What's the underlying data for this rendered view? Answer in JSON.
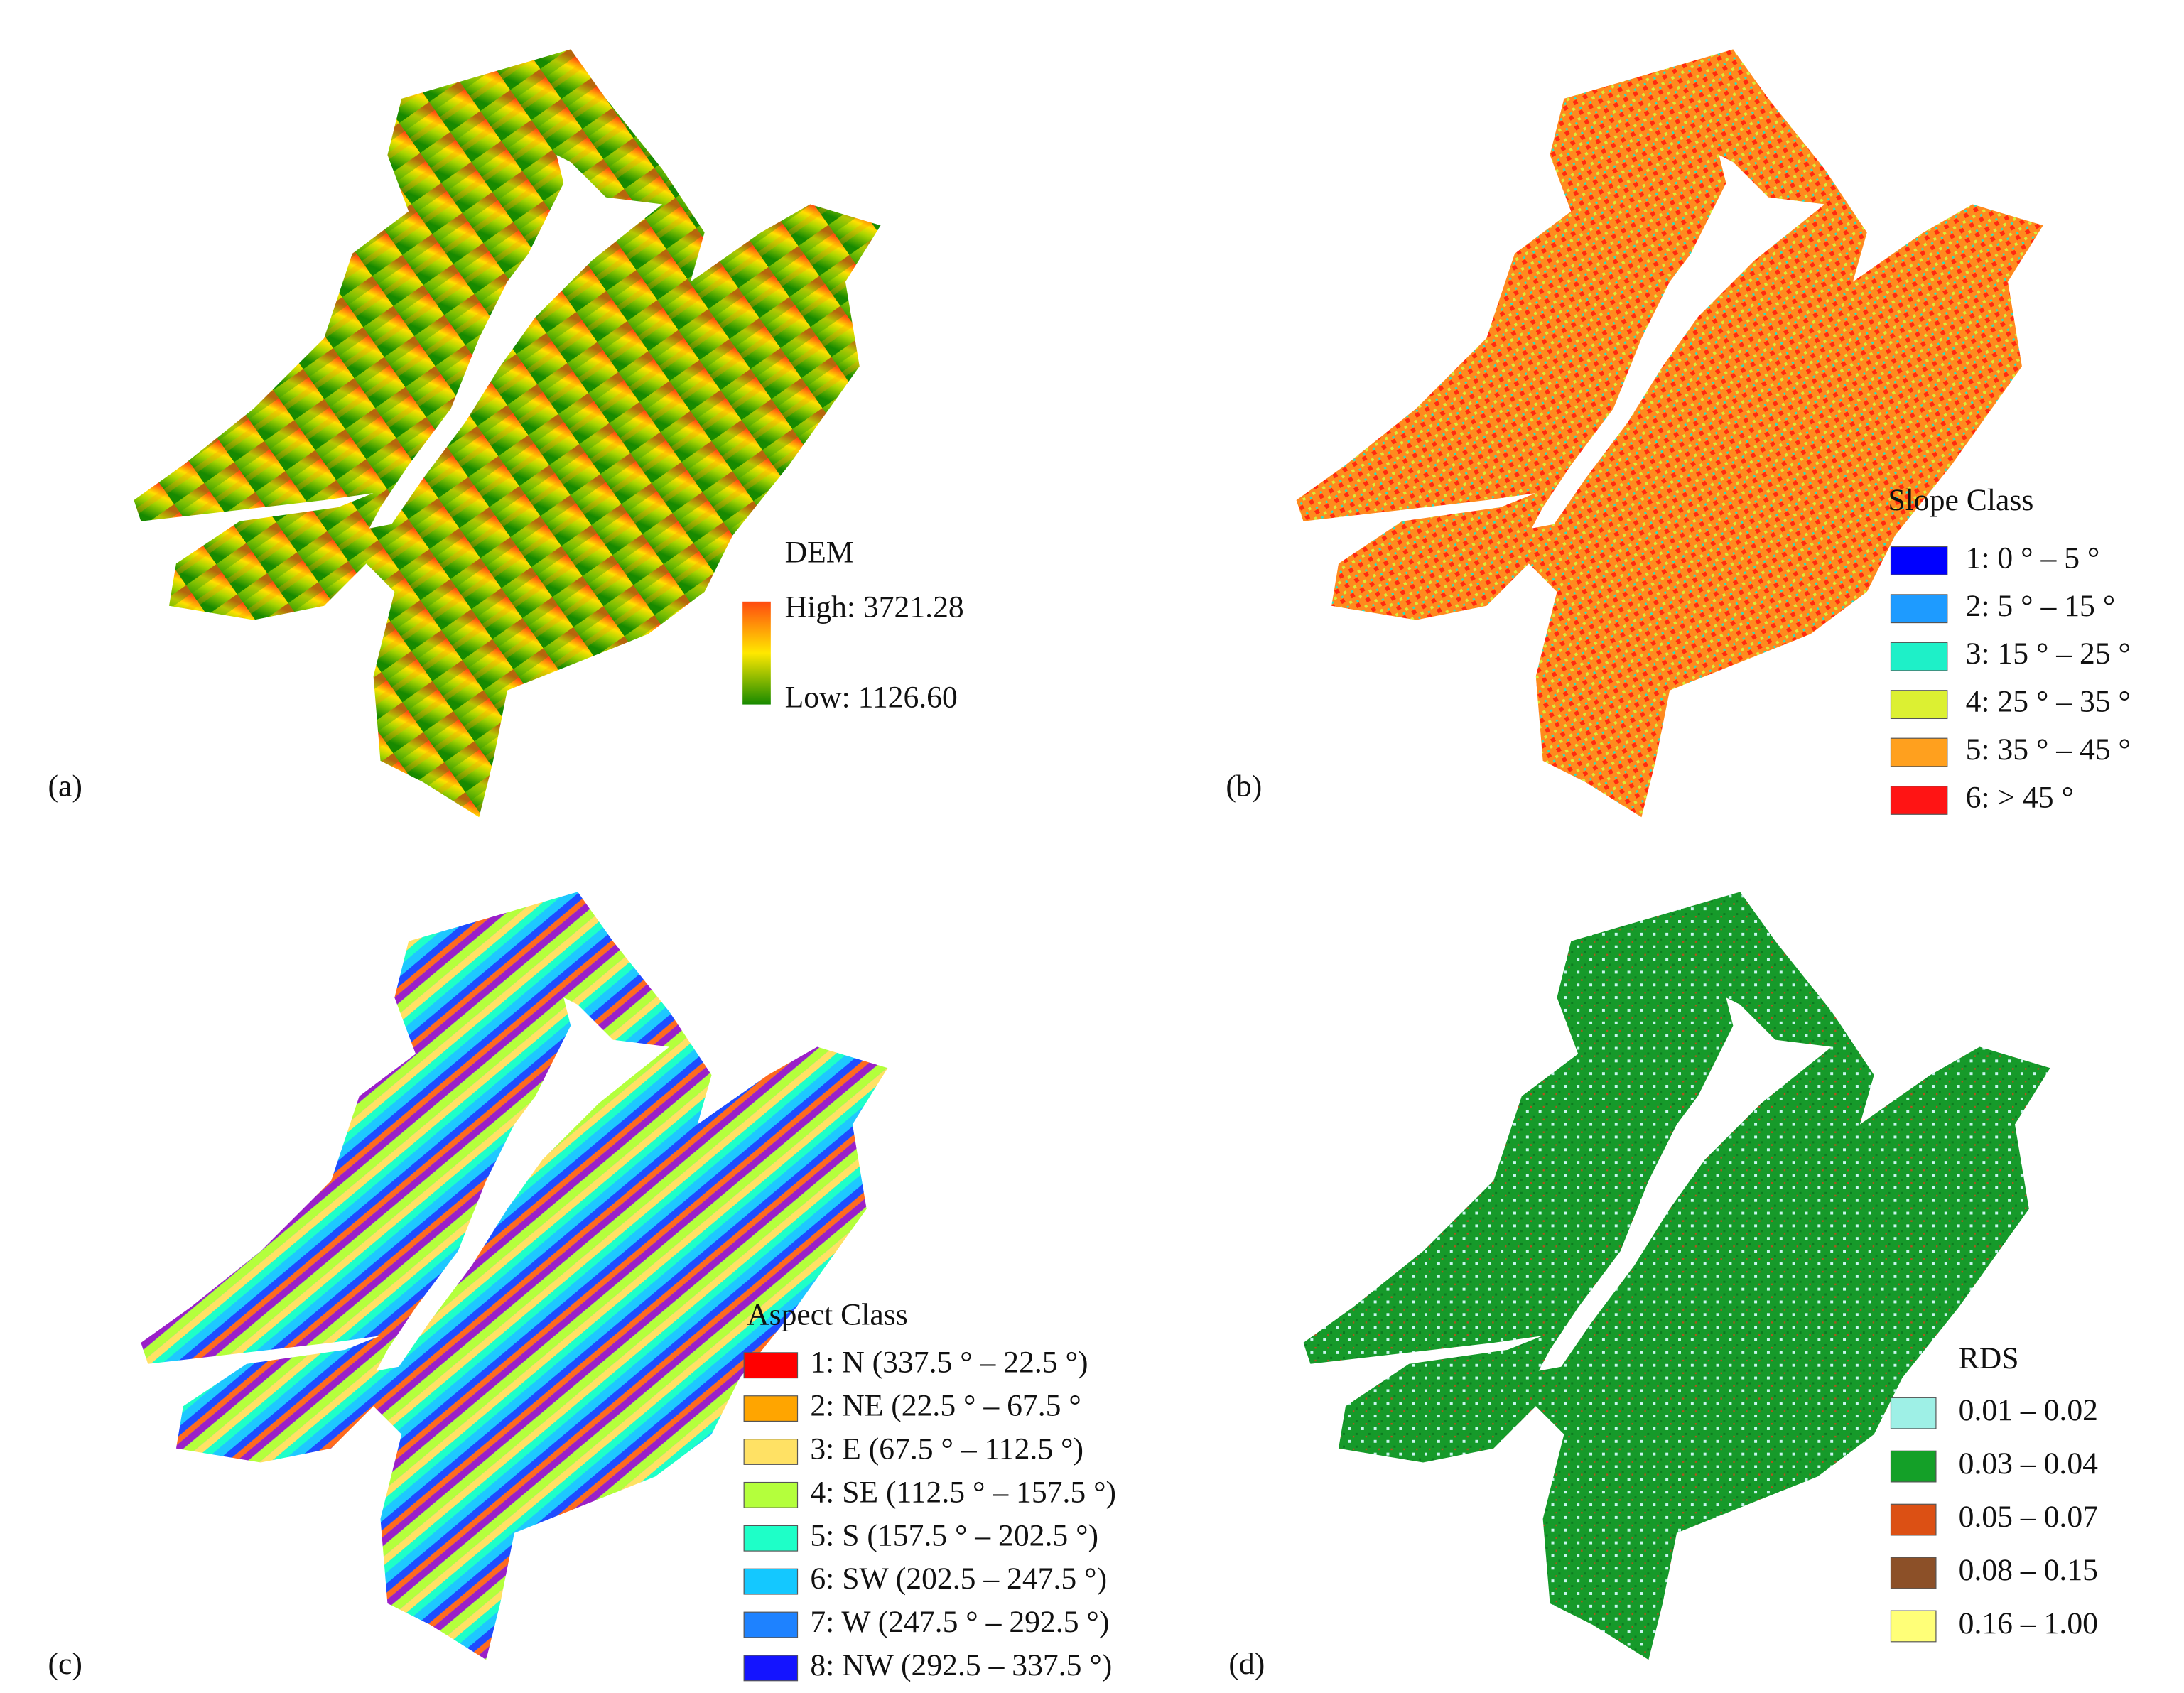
{
  "panels": [
    {
      "label": "(a)",
      "legend": {
        "title": "DEM",
        "high": "High: 3721.28",
        "low": "Low: 1126.60",
        "colors": [
          "#ff4a10",
          "#ffe800",
          "#178a00"
        ]
      }
    },
    {
      "label": "(b)",
      "legend": {
        "title": "Slope Class",
        "items": [
          {
            "label": "1: 0 ° – 5 °",
            "color": "#0000ff"
          },
          {
            "label": "2: 5 ° – 15 °",
            "color": "#1e9bff"
          },
          {
            "label": "3: 15 ° – 25 °",
            "color": "#1ef0c8"
          },
          {
            "label": "4: 25 ° – 35 °",
            "color": "#dcf032"
          },
          {
            "label": "5: 35 ° – 45 °",
            "color": "#ffa01e"
          },
          {
            "label": "6: > 45 °",
            "color": "#ff1414"
          }
        ]
      }
    },
    {
      "label": "(c)",
      "legend": {
        "title": "Aspect Class",
        "items": [
          {
            "label": "1: N (337.5 ° – 22.5 °)",
            "color": "#ff0000"
          },
          {
            "label": "2: NE (22.5 ° – 67.5 °",
            "color": "#ffa500"
          },
          {
            "label": "3: E (67.5 ° – 112.5 °)",
            "color": "#ffe164"
          },
          {
            "label": "4: SE (112.5 ° – 157.5 °)",
            "color": "#b4ff3c"
          },
          {
            "label": "5: S (157.5 ° – 202.5 °)",
            "color": "#1effc8"
          },
          {
            "label": "6: SW (202.5 – 247.5 °)",
            "color": "#14c8ff"
          },
          {
            "label": "7: W (247.5 ° – 292.5 °)",
            "color": "#1e82ff"
          },
          {
            "label": "8: NW (292.5 – 337.5 °)",
            "color": "#1414ff"
          }
        ]
      }
    },
    {
      "label": "(d)",
      "legend": {
        "title": "RDS",
        "items": [
          {
            "label": "0.01 – 0.02",
            "color": "#9ef0e6"
          },
          {
            "label": "0.03 – 0.04",
            "color": "#14a028"
          },
          {
            "label": "0.05 – 0.07",
            "color": "#dc5014"
          },
          {
            "label": "0.08 – 0.15",
            "color": "#8c5028"
          },
          {
            "label": "0.16 – 1.00",
            "color": "#ffff78"
          }
        ]
      }
    }
  ]
}
